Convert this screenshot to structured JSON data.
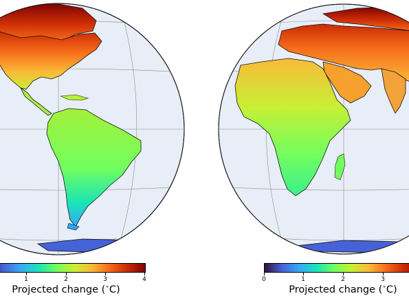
{
  "colorscale": {
    "stops": [
      "#30123b",
      "#4662d7",
      "#36aaf9",
      "#1ae4b6",
      "#72fe5e",
      "#c8ef34",
      "#faba39",
      "#f66b19",
      "#ca2a04",
      "#7a0403"
    ]
  },
  "colors": {
    "ocean": "#e8eef7",
    "border": "#111111",
    "graticule": "#8c8c8c"
  },
  "left_map": {
    "colorbar_ticks": [
      "1",
      "2",
      "3",
      "4"
    ],
    "colorbar_label": "Projected change ($^\\circ$C)"
  },
  "right_map": {
    "colorbar_ticks": [
      "0",
      "1",
      "2",
      "3"
    ],
    "colorbar_label": "Projected change ($^\\circ$C)"
  }
}
